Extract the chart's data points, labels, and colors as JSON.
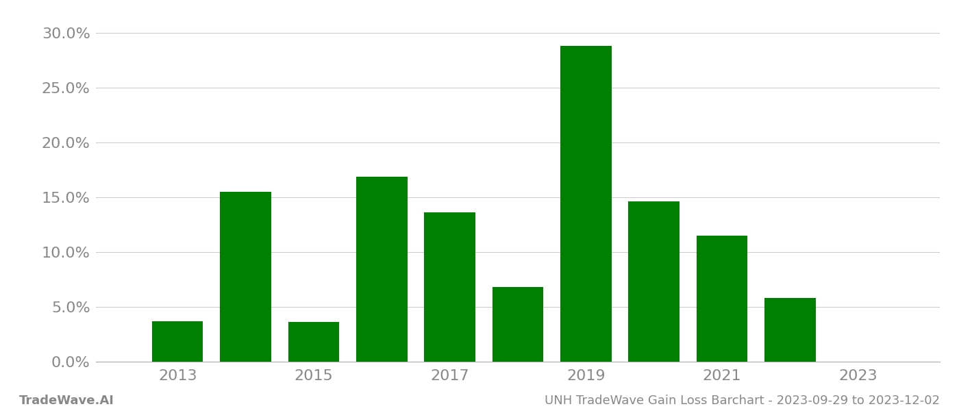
{
  "years": [
    2013,
    2014,
    2015,
    2016,
    2017,
    2018,
    2019,
    2020,
    2021,
    2022,
    2023
  ],
  "values": [
    0.037,
    0.155,
    0.036,
    0.169,
    0.136,
    0.068,
    0.288,
    0.146,
    0.115,
    0.058,
    0.0
  ],
  "bar_color": "#008000",
  "bg_color": "#ffffff",
  "grid_color": "#cccccc",
  "axis_color": "#aaaaaa",
  "tick_color": "#888888",
  "ylim": [
    0,
    0.315
  ],
  "yticks": [
    0.0,
    0.05,
    0.1,
    0.15,
    0.2,
    0.25,
    0.3
  ],
  "ytick_labels": [
    "0.0%",
    "5.0%",
    "10.0%",
    "15.0%",
    "20.0%",
    "25.0%",
    "30.0%"
  ],
  "xtick_labels": [
    "2013",
    "2015",
    "2017",
    "2019",
    "2021",
    "2023"
  ],
  "xtick_positions": [
    2013,
    2015,
    2017,
    2019,
    2021,
    2023
  ],
  "xlim": [
    2011.8,
    2024.2
  ],
  "footer_left": "TradeWave.AI",
  "footer_right": "UNH TradeWave Gain Loss Barchart - 2023-09-29 to 2023-12-02",
  "footer_color": "#888888",
  "footer_fontsize": 13,
  "tick_fontsize": 16,
  "bar_width": 0.75
}
